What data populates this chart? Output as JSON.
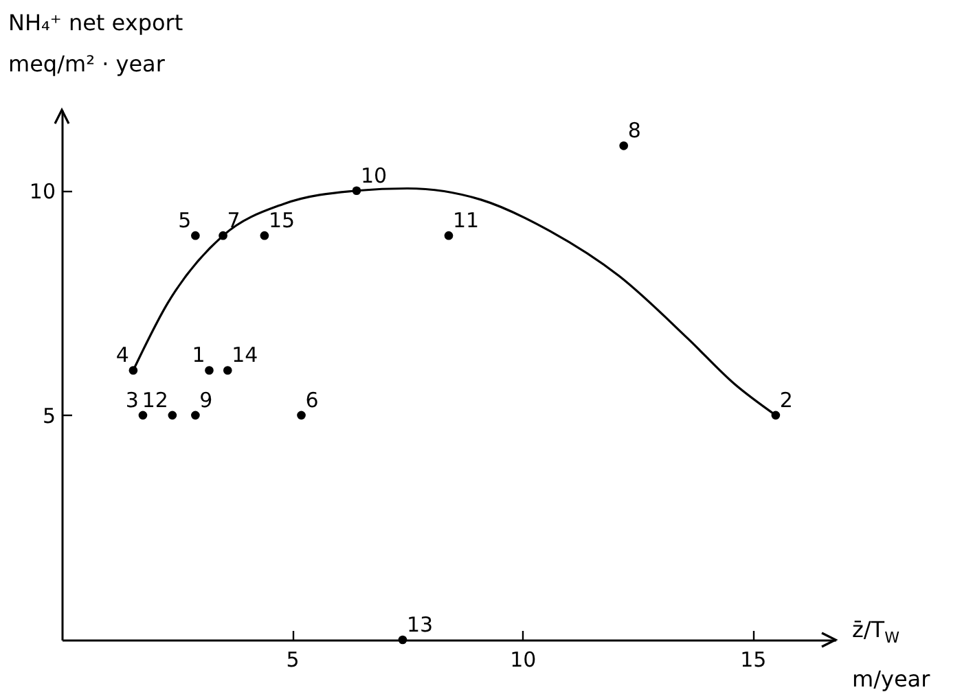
{
  "chart_data": {
    "type": "scatter",
    "ylabel": "NH₄⁺ net export\nmeq/m² · year",
    "xlabel": "z̄/T$_{W}$\nm/year",
    "xlim": [
      0,
      16.8
    ],
    "ylim": [
      0,
      11.8
    ],
    "xticks": [
      5,
      10,
      15
    ],
    "yticks": [
      5,
      10
    ],
    "line_style": "solid",
    "series": [
      {
        "type": "scatter",
        "marker": "circle",
        "color": "#000000",
        "x": [
          3.2,
          15.5,
          1.76,
          1.55,
          2.9,
          5.2,
          3.5,
          12.2,
          2.9,
          6.4,
          8.4,
          2.4,
          7.4,
          3.6,
          4.4
        ],
        "values": [
          6,
          5,
          5,
          6,
          9,
          5,
          9,
          11,
          5,
          10,
          9,
          5,
          0,
          6,
          9
        ]
      },
      {
        "type": "line",
        "marker": "none",
        "color": "#000000",
        "x": [
          1.55,
          2.3,
          3.5,
          4.8,
          6.4,
          7.5,
          9.1,
          10.6,
          12.1,
          13.6,
          14.6,
          15.5
        ],
        "values": [
          6,
          7.5,
          9,
          9.7,
          10,
          10.05,
          9.8,
          9.1,
          8.1,
          6.7,
          5.7,
          5
        ]
      }
    ],
    "annotations": [
      {
        "text": "1",
        "x": 3.2,
        "y": 6
      },
      {
        "text": "2",
        "x": 15.5,
        "y": 5
      },
      {
        "text": "3",
        "x": 1.76,
        "y": 5
      },
      {
        "text": "4",
        "x": 1.55,
        "y": 6
      },
      {
        "text": "5",
        "x": 2.9,
        "y": 9
      },
      {
        "text": "6",
        "x": 5.2,
        "y": 5
      },
      {
        "text": "7",
        "x": 3.5,
        "y": 9
      },
      {
        "text": "8",
        "x": 12.2,
        "y": 11
      },
      {
        "text": "9",
        "x": 2.9,
        "y": 5
      },
      {
        "text": "10",
        "x": 6.4,
        "y": 10
      },
      {
        "text": "11",
        "x": 8.4,
        "y": 9
      },
      {
        "text": "12",
        "x": 2.4,
        "y": 5
      },
      {
        "text": "13",
        "x": 7.4,
        "y": 0
      },
      {
        "text": "14",
        "x": 3.6,
        "y": 6
      },
      {
        "text": "15",
        "x": 4.4,
        "y": 9
      }
    ]
  }
}
